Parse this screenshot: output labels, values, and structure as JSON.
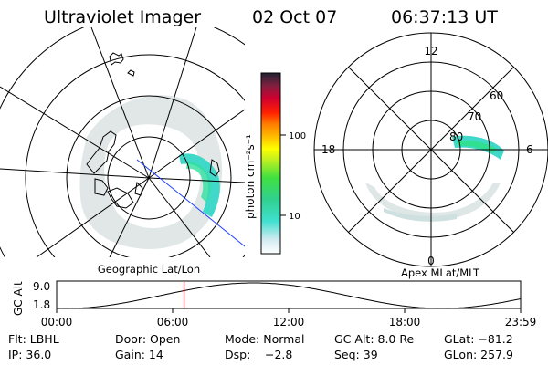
{
  "header": {
    "title": "Ultraviolet Imager",
    "date": "02 Oct 07",
    "time": "06:37:13 UT"
  },
  "left_panel": {
    "label": "Geographic Lat/Lon"
  },
  "right_panel": {
    "label": "Apex MLat/MLT",
    "mlt_labels": [
      "12",
      "18",
      "6",
      "0"
    ],
    "lat_labels": [
      "60",
      "70",
      "80"
    ]
  },
  "colorbar": {
    "unit_label": "photon cm⁻²s⁻¹",
    "tick_labels": [
      "100",
      "10"
    ]
  },
  "timeline": {
    "ylabel": "GC Alt",
    "y_ticks": [
      "9.0",
      "1.8"
    ],
    "x_ticks": [
      "00:00",
      "06:00",
      "12:00",
      "18:00",
      "23:59"
    ],
    "current_time_fraction": 0.275
  },
  "info": {
    "row1": [
      "Flt: LBHL",
      "Door: Open",
      "Mode: Normal",
      "GC Alt: 8.0 Re",
      "GLat: −81.2"
    ],
    "row2": [
      "IP: 36.0",
      "Gain: 14",
      "Dsp:",
      "−2.8",
      "Seq: 39",
      "GLon: 257.9"
    ]
  },
  "colors": {
    "current_time_marker": "#ff0000",
    "aurora_bright": "#30e0c0",
    "aurora_faint": "#d8e4e4"
  }
}
